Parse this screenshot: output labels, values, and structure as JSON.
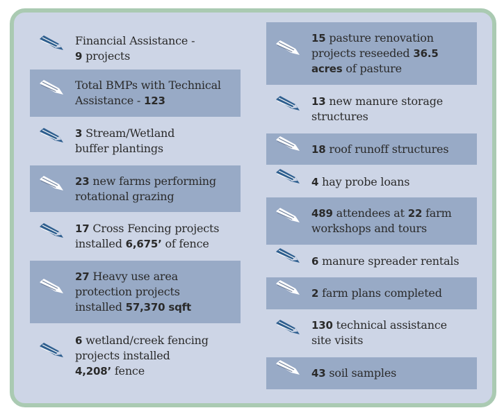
{
  "colors": {
    "border": "#aacab2",
    "background": "#cdd5e6",
    "shaded_row": "#98aac6",
    "icon_dark": "#2f5f8f",
    "icon_light": "#ffffff"
  },
  "left": [
    {
      "shaded": false,
      "lines": [
        [
          {
            "t": "Financial Assistance -"
          }
        ],
        [
          {
            "t": "9",
            "b": true
          },
          {
            "t": " projects"
          }
        ]
      ]
    },
    {
      "shaded": true,
      "lines": [
        [
          {
            "t": "Total BMPs with Technical"
          }
        ],
        [
          {
            "t": "Assistance - "
          },
          {
            "t": "123",
            "b": true
          }
        ]
      ]
    },
    {
      "shaded": false,
      "lines": [
        [
          {
            "t": "3",
            "b": true
          },
          {
            "t": " Stream/Wetland"
          }
        ],
        [
          {
            "t": "buffer plantings"
          }
        ]
      ]
    },
    {
      "shaded": true,
      "lines": [
        [
          {
            "t": "23",
            "b": true
          },
          {
            "t": " new farms performing"
          }
        ],
        [
          {
            "t": "rotational grazing"
          }
        ]
      ]
    },
    {
      "shaded": false,
      "lines": [
        [
          {
            "t": "17",
            "b": true
          },
          {
            "t": " Cross Fencing projects"
          }
        ],
        [
          {
            "t": "installed "
          },
          {
            "t": "6,675’",
            "b": true
          },
          {
            "t": " of fence"
          }
        ]
      ]
    },
    {
      "shaded": true,
      "lines": [
        [
          {
            "t": "27",
            "b": true
          },
          {
            "t": " Heavy use area"
          }
        ],
        [
          {
            "t": "protection projects"
          }
        ],
        [
          {
            "t": "installed "
          },
          {
            "t": "57,370 sqft",
            "b": true
          }
        ]
      ]
    },
    {
      "shaded": false,
      "lines": [
        [
          {
            "t": "6",
            "b": true
          },
          {
            "t": " wetland/creek fencing"
          }
        ],
        [
          {
            "t": "projects installed"
          }
        ],
        [
          {
            "t": "4,208’",
            "b": true
          },
          {
            "t": " fence"
          }
        ]
      ]
    }
  ],
  "right": [
    {
      "shaded": true,
      "lines": [
        [
          {
            "t": "15",
            "b": true
          },
          {
            "t": " pasture renovation"
          }
        ],
        [
          {
            "t": "projects reseeded "
          },
          {
            "t": "36.5",
            "b": true
          }
        ],
        [
          {
            "t": "acres",
            "b": true
          },
          {
            "t": " of pasture"
          }
        ]
      ]
    },
    {
      "shaded": false,
      "lines": [
        [
          {
            "t": "13",
            "b": true
          },
          {
            "t": " new manure storage"
          }
        ],
        [
          {
            "t": "structures"
          }
        ]
      ]
    },
    {
      "shaded": true,
      "lines": [
        [
          {
            "t": "18",
            "b": true
          },
          {
            "t": " roof runoff structures"
          }
        ]
      ]
    },
    {
      "shaded": false,
      "lines": [
        [
          {
            "t": "4",
            "b": true
          },
          {
            "t": " hay probe loans"
          }
        ]
      ]
    },
    {
      "shaded": true,
      "lines": [
        [
          {
            "t": "489",
            "b": true
          },
          {
            "t": " attendees at "
          },
          {
            "t": "22",
            "b": true
          },
          {
            "t": " farm"
          }
        ],
        [
          {
            "t": "workshops and tours"
          }
        ]
      ]
    },
    {
      "shaded": false,
      "lines": [
        [
          {
            "t": "6",
            "b": true
          },
          {
            "t": " manure spreader rentals"
          }
        ]
      ]
    },
    {
      "shaded": true,
      "lines": [
        [
          {
            "t": "2",
            "b": true
          },
          {
            "t": " farm plans completed"
          }
        ]
      ]
    },
    {
      "shaded": false,
      "lines": [
        [
          {
            "t": "130",
            "b": true
          },
          {
            "t": " technical assistance"
          }
        ],
        [
          {
            "t": "site visits"
          }
        ]
      ]
    },
    {
      "shaded": true,
      "lines": [
        [
          {
            "t": "43",
            "b": true
          },
          {
            "t": " soil samples"
          }
        ]
      ]
    }
  ]
}
